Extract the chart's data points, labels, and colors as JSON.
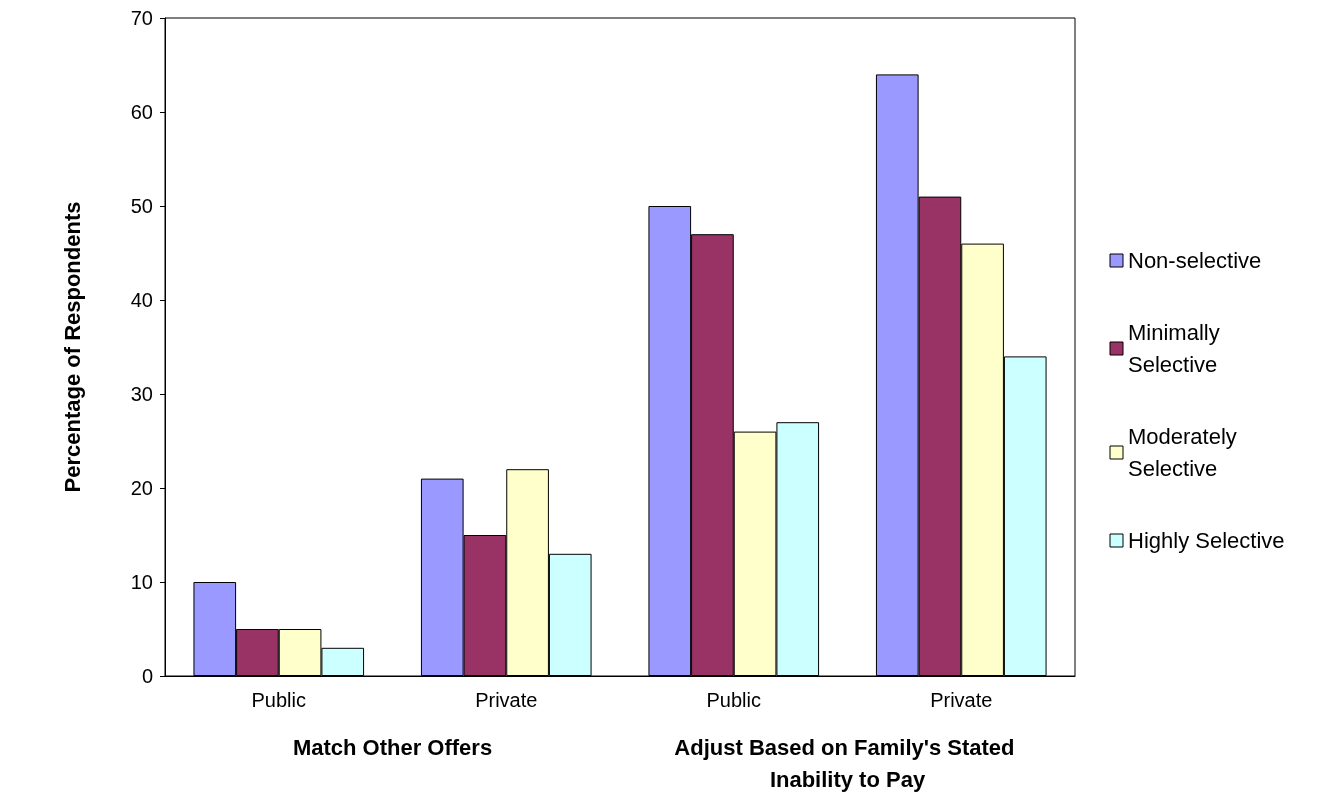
{
  "chart_data": {
    "type": "bar",
    "ylabel": "Percentage of Respondents",
    "categories": [
      "Public",
      "Private",
      "Public",
      "Private"
    ],
    "series": [
      {
        "name": "Non-selective",
        "color": "#9999ff",
        "values": [
          10,
          21,
          50,
          64
        ]
      },
      {
        "name": "Minimally Selective",
        "color": "#993366",
        "values": [
          5,
          15,
          47,
          51
        ]
      },
      {
        "name": "Moderately Selective",
        "color": "#ffffcc",
        "values": [
          5,
          22,
          26,
          46
        ]
      },
      {
        "name": "Highly Selective",
        "color": "#ccffff",
        "values": [
          3,
          13,
          27,
          34
        ]
      }
    ],
    "annotations": [
      "Match Other Offers",
      "Adjust Based on Family's Stated Inability to Pay"
    ],
    "ylim": [
      0,
      70
    ],
    "yticks": [
      0,
      10,
      20,
      30,
      40,
      50,
      60,
      70
    ],
    "grid": false,
    "legend": "right"
  }
}
